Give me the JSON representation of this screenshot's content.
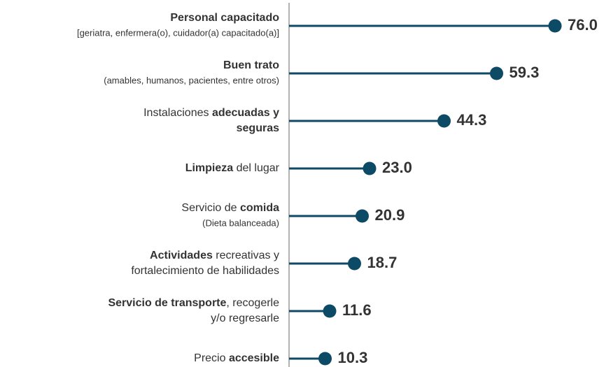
{
  "chart_data": {
    "type": "lollipop",
    "color": "#0d4a66",
    "xlim": [
      0,
      90
    ],
    "categories": [
      {
        "lines": [
          [
            {
              "text": "Personal capacitado",
              "bold": true
            }
          ]
        ],
        "note": "[geriatra, enfermera(o), cuidador(a) capacitado(a)]"
      },
      {
        "lines": [
          [
            {
              "text": "Buen trato",
              "bold": true
            }
          ]
        ],
        "note": "(amables, humanos, pacientes, entre otros)"
      },
      {
        "lines": [
          [
            {
              "text": "Instalaciones ",
              "bold": false
            },
            {
              "text": "adecuadas y",
              "bold": true
            }
          ],
          [
            {
              "text": "seguras",
              "bold": true
            }
          ]
        ]
      },
      {
        "lines": [
          [
            {
              "text": "Limpieza",
              "bold": true
            },
            {
              "text": " del lugar",
              "bold": false
            }
          ]
        ]
      },
      {
        "lines": [
          [
            {
              "text": "Servicio de ",
              "bold": false
            },
            {
              "text": "comida",
              "bold": true
            }
          ]
        ],
        "note": "(Dieta balanceada)"
      },
      {
        "lines": [
          [
            {
              "text": "Actividades",
              "bold": true
            },
            {
              "text": " recreativas y",
              "bold": false
            }
          ],
          [
            {
              "text": "fortalecimiento de habilidades",
              "bold": false
            }
          ]
        ]
      },
      {
        "lines": [
          [
            {
              "text": "Servicio de transporte",
              "bold": true
            },
            {
              "text": ", recogerle",
              "bold": false
            }
          ],
          [
            {
              "text": "y/o regresarle",
              "bold": false
            }
          ]
        ]
      },
      {
        "lines": [
          [
            {
              "text": "Precio ",
              "bold": false
            },
            {
              "text": "accesible",
              "bold": true
            }
          ]
        ]
      }
    ],
    "values": [
      76.0,
      59.3,
      44.3,
      23.0,
      20.9,
      18.7,
      11.6,
      10.3
    ],
    "value_labels": [
      "76.0",
      "59.3",
      "44.3",
      "23.0",
      "20.9",
      "18.7",
      "11.6",
      "10.3"
    ]
  }
}
